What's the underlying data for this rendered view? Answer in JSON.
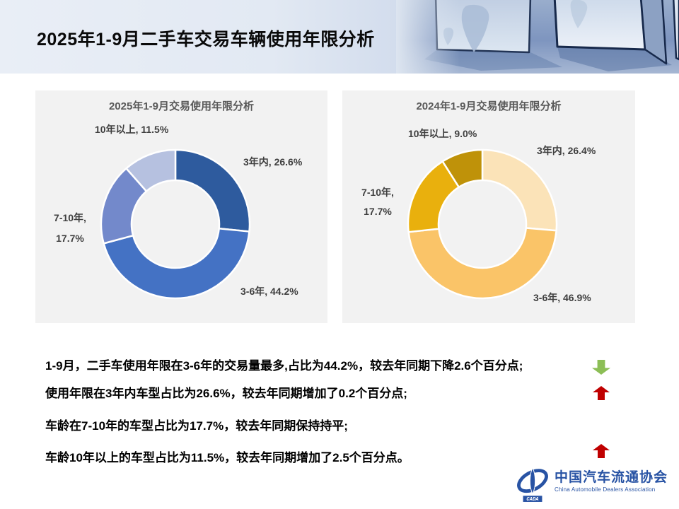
{
  "header": {
    "title": "2025年1-9月二手车交易车辆使用年限分析"
  },
  "chart_data": [
    {
      "type": "pie",
      "subtype": "donut",
      "title": "2025年1-9月交易使用年限分析",
      "categories": [
        "3年内",
        "3-6年",
        "7-10年",
        "10年以上"
      ],
      "values": [
        26.6,
        44.2,
        17.7,
        11.5
      ],
      "unit": "%",
      "colors": [
        "#2e5b9e",
        "#4472c4",
        "#7389cb",
        "#b6c1e0"
      ],
      "start_angle_deg": 0,
      "direction": "clockwise",
      "legend": "none",
      "labels": {
        "top": "10年以上, 11.5%",
        "right": "3年内, 26.6%",
        "left": "7-10年,\n17.7%",
        "bottom": "3-6年, 44.2%"
      }
    },
    {
      "type": "pie",
      "subtype": "donut",
      "title": "2024年1-9月交易使用年限分析",
      "categories": [
        "3年内",
        "3-6年",
        "7-10年",
        "10年以上"
      ],
      "values": [
        26.4,
        46.9,
        17.7,
        9.0
      ],
      "unit": "%",
      "colors": [
        "#fbe3b8",
        "#fac468",
        "#e9b00d",
        "#bf9209"
      ],
      "start_angle_deg": 0,
      "direction": "clockwise",
      "legend": "none",
      "labels": {
        "top": "10年以上, 9.0%",
        "right": "3年内, 26.4%",
        "left": "7-10年,\n17.7%",
        "bottom": "3-6年, 46.9%"
      }
    }
  ],
  "notes": [
    {
      "text": "1-9月，二手车使用年限在3-6年的交易量最多,占比为44.2%，较去年同期下降2.6个百分点;",
      "arrow": "down",
      "arrow_color": "#8cbe56"
    },
    {
      "text": "使用年限在3年内车型占比为26.6%，较去年同期增加了0.2个百分点;",
      "arrow": "up",
      "arrow_color": "#c00000"
    },
    {
      "text": "车龄在7-10年的车型占比为17.7%，较去年同期保持持平;",
      "arrow": null
    },
    {
      "text": "车龄10年以上的车型占比为11.5%，较去年同期增加了2.5个百分点。",
      "arrow": "up",
      "arrow_color": "#c00000"
    }
  ],
  "logo": {
    "cn": "中国汽车流通协会",
    "en": "China Automobile Dealers Association",
    "mark": "CADA",
    "color": "#2853a4"
  }
}
